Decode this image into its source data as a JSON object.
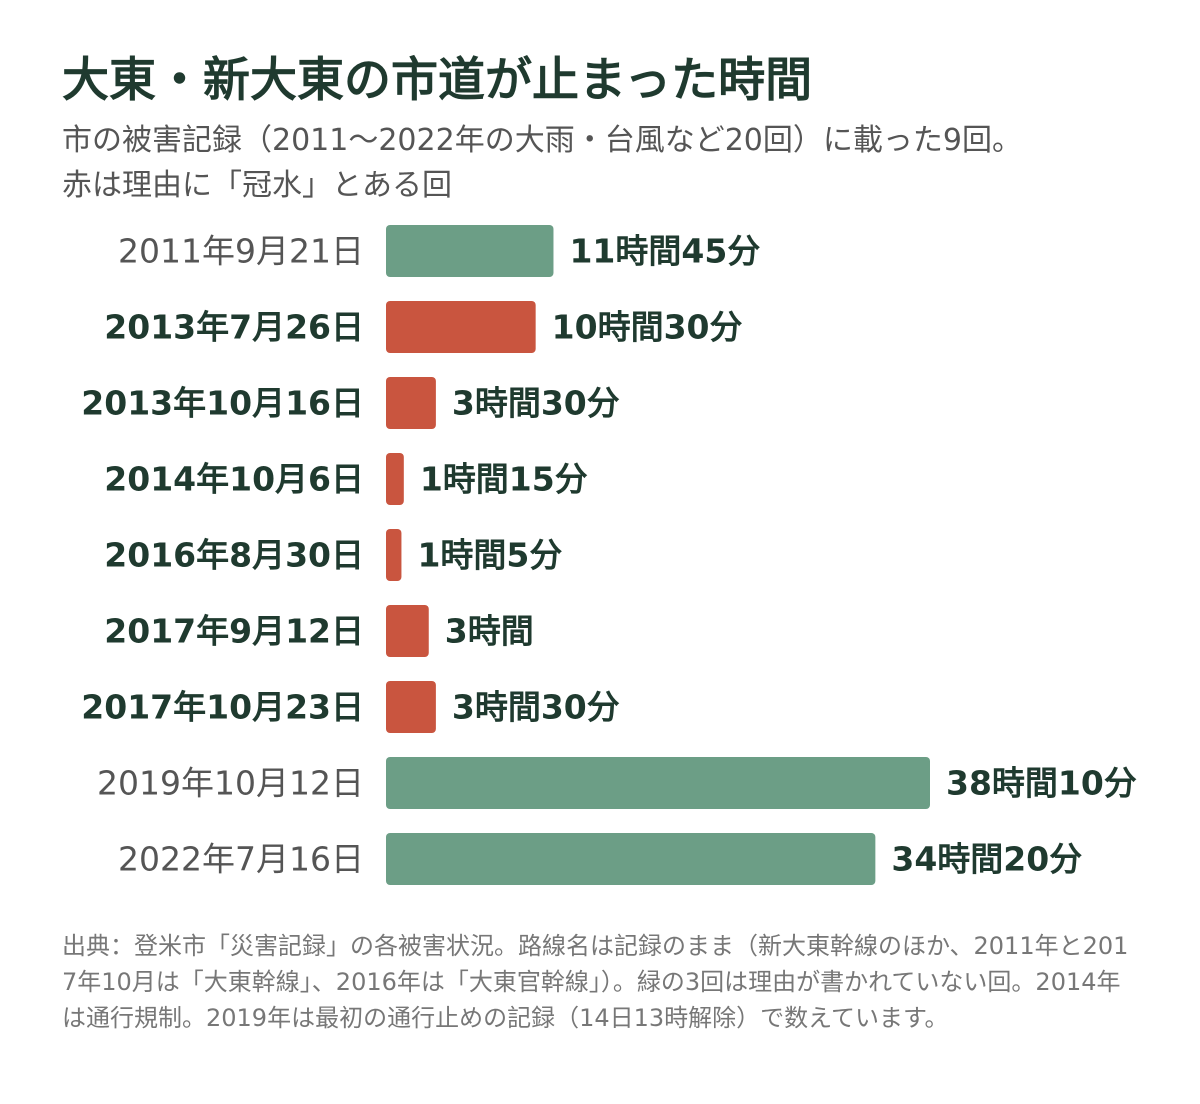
{
  "header": {
    "title": "大東・新大東の市道が止まった時間",
    "subtitle_line1": "市の被害記録（2011〜2022年の大雨・台風など20回）に載った9回。",
    "subtitle_line2": "赤は理由に「冠水」とある回"
  },
  "chart_data": {
    "type": "bar",
    "orientation": "horizontal",
    "title": "大東・新大東の市道が止まった時間",
    "value_unit": "hours",
    "categories": [
      "2011年9月21日",
      "2013年7月26日",
      "2013年10月16日",
      "2014年10月6日",
      "2016年8月30日",
      "2017年9月12日",
      "2017年10月23日",
      "2019年10月12日",
      "2022年7月16日"
    ],
    "values": [
      11.75,
      10.5,
      3.5,
      1.25,
      1.0833,
      3,
      3.5,
      38.1667,
      34.3333
    ],
    "value_labels": [
      "11時間45分",
      "10時間30分",
      "3時間30分",
      "1時間15分",
      "1時間5分",
      "3時間",
      "3時間30分",
      "38時間10分",
      "34時間20分"
    ],
    "flooded": [
      false,
      true,
      true,
      true,
      true,
      true,
      true,
      false,
      false
    ],
    "colors": {
      "flooded": "#c9553f",
      "other": "#6c9e86",
      "label_text": "#1f3a2f",
      "normal_date_text": "#555555"
    },
    "xlim": [
      0,
      38.1667
    ],
    "grid": false,
    "legend": "none"
  },
  "footer": {
    "source": "出典：登米市「災害記録」の各被害状況。路線名は記録のまま（新大東幹線のほか、2011年と2017年10月は「大東幹線」、2016年は「大東官幹線」）。緑の3回は理由が書かれていない回。2014年は通行規制。2019年は最初の通行止めの記録（14日13時解除）で数えています。"
  }
}
